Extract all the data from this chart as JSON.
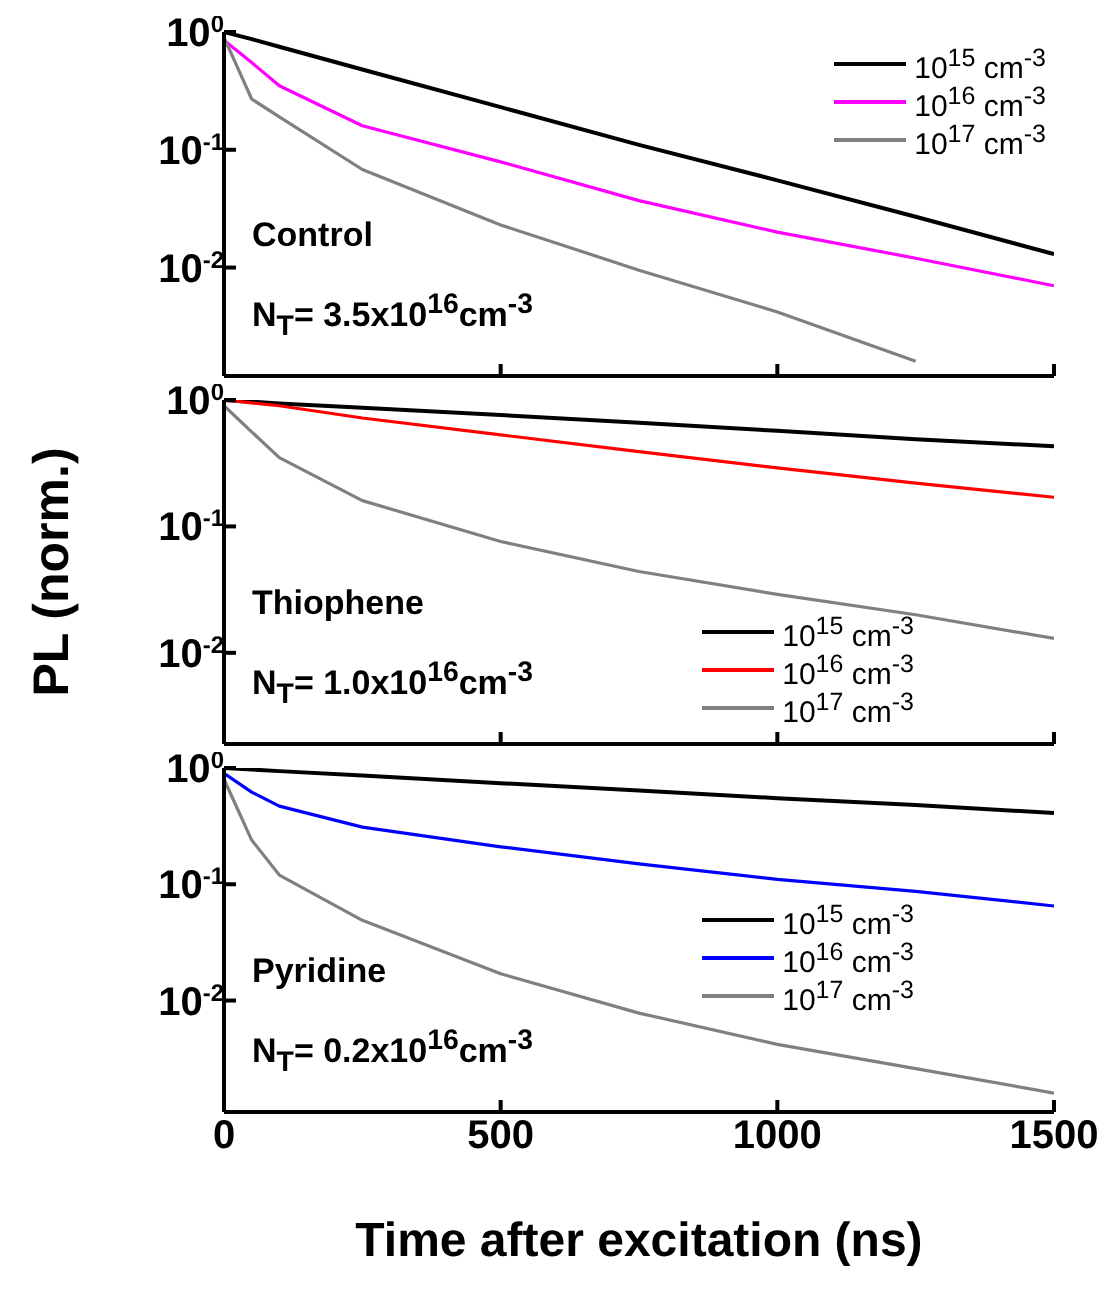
{
  "chart_data": [
    {
      "type": "line",
      "x": [
        0,
        50,
        100,
        250,
        500,
        750,
        1000,
        1250,
        1500
      ],
      "xlim": [
        0,
        1500
      ],
      "xticks": [
        0,
        500,
        1000,
        1500
      ],
      "ylim": [
        0.0012,
        1
      ],
      "log": true,
      "yticks": [
        {
          "value": 1,
          "label": "10$^{0}$"
        },
        {
          "value": 0.1,
          "label": "10$^{-1}$"
        },
        {
          "value": 0.01,
          "label": "10$^{-2}$"
        }
      ],
      "tick_labels": "y",
      "legend": "top right",
      "marker": "none",
      "line_style": "solid",
      "annotations": [
        "Control",
        "N$_{T}$= 3.5x10$^{16}$cm$^{-3}$"
      ],
      "series": [
        {
          "name": "10$^{15}$ cm$^{-3}$",
          "color": "#000000",
          "values": [
            1,
            0.87,
            0.75,
            0.48,
            0.23,
            0.11,
            0.055,
            0.027,
            0.013
          ]
        },
        {
          "name": "10$^{16}$ cm$^{-3}$",
          "color": "#ff00ff",
          "values": [
            0.85,
            0.55,
            0.35,
            0.16,
            0.079,
            0.037,
            0.02,
            0.012,
            0.007
          ]
        },
        {
          "name": "10$^{17}$ cm$^{-3}$",
          "color": "#808080",
          "values": [
            0.9,
            0.27,
            0.19,
            0.068,
            0.023,
            0.0095,
            0.0042,
            0.0016,
            null
          ]
        }
      ]
    },
    {
      "type": "line",
      "x": [
        0,
        50,
        100,
        250,
        500,
        750,
        1000,
        1250,
        1500
      ],
      "xlim": [
        0,
        1500
      ],
      "xticks": [
        0,
        500,
        1000,
        1500
      ],
      "ylim": [
        0.0019,
        1
      ],
      "log": true,
      "yticks": [
        {
          "value": 1,
          "label": "10$^{0}$"
        },
        {
          "value": 0.1,
          "label": "10$^{-1}$"
        },
        {
          "value": 0.01,
          "label": "10$^{-2}$"
        }
      ],
      "tick_labels": "y",
      "legend": "bottom right",
      "marker": "none",
      "line_style": "solid",
      "ylabel": "PL (norm.)",
      "annotations": [
        "Thiophene",
        "N$_{T}$= 1.0x10$^{16}$cm$^{-3}$"
      ],
      "series": [
        {
          "name": "10$^{15}$ cm$^{-3}$",
          "color": "#000000",
          "values": [
            1,
            0.97,
            0.94,
            0.87,
            0.76,
            0.66,
            0.57,
            0.49,
            0.43
          ]
        },
        {
          "name": "10$^{16}$ cm$^{-3}$",
          "color": "#ff0000",
          "values": [
            1,
            0.95,
            0.9,
            0.72,
            0.53,
            0.39,
            0.29,
            0.22,
            0.17
          ]
        },
        {
          "name": "10$^{17}$ cm$^{-3}$",
          "color": "#808080",
          "values": [
            0.9,
            0.56,
            0.35,
            0.16,
            0.076,
            0.044,
            0.029,
            0.02,
            0.013
          ]
        }
      ]
    },
    {
      "type": "line",
      "x": [
        0,
        50,
        100,
        250,
        500,
        750,
        1000,
        1250,
        1500
      ],
      "xlim": [
        0,
        1500
      ],
      "xticks": [
        0,
        500,
        1000,
        1500
      ],
      "ylim": [
        0.0011,
        1
      ],
      "log": true,
      "yticks": [
        {
          "value": 1,
          "label": "10$^{0}$"
        },
        {
          "value": 0.1,
          "label": "10$^{-1}$"
        },
        {
          "value": 0.01,
          "label": "10$^{-2}$"
        }
      ],
      "legend": "right",
      "marker": "none",
      "line_style": "solid",
      "xlabel": "Time after excitation (ns)",
      "annotations": [
        "Pyridine",
        "N$_{T}$= 0.2x10$^{16}$cm$^{-3}$"
      ],
      "series": [
        {
          "name": "10$^{15}$ cm$^{-3}$",
          "color": "#000000",
          "values": [
            1,
            0.97,
            0.94,
            0.86,
            0.74,
            0.64,
            0.55,
            0.48,
            0.41
          ]
        },
        {
          "name": "10$^{16}$ cm$^{-3}$",
          "color": "#0000ff",
          "values": [
            0.9,
            0.62,
            0.47,
            0.31,
            0.21,
            0.15,
            0.11,
            0.087,
            0.065
          ]
        },
        {
          "name": "10$^{17}$ cm$^{-3}$",
          "color": "#808080",
          "values": [
            0.8,
            0.24,
            0.12,
            0.049,
            0.017,
            0.0078,
            0.0042,
            0.0026,
            0.0016
          ]
        }
      ]
    }
  ]
}
